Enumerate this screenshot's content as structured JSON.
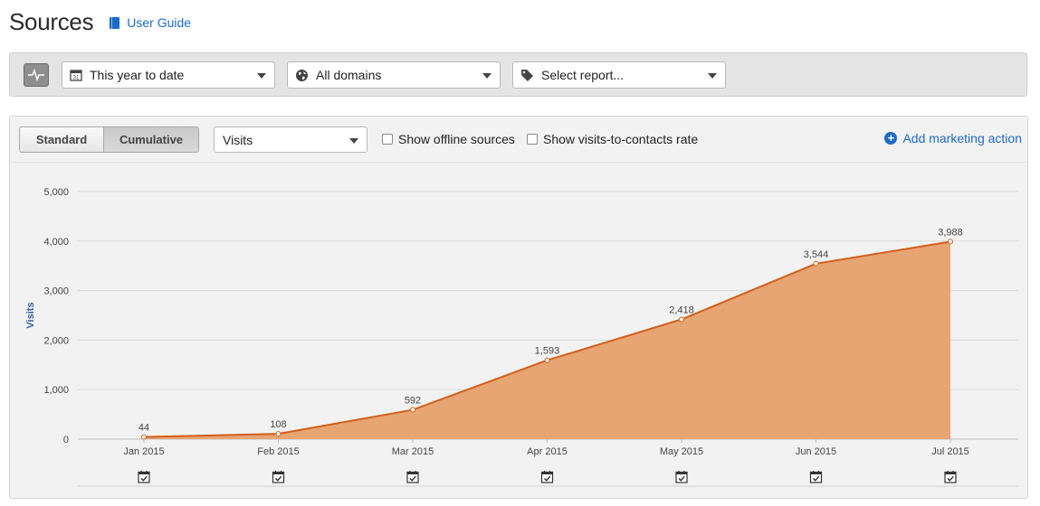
{
  "header": {
    "title": "Sources",
    "user_guide": "User Guide"
  },
  "filters": {
    "date_range": "This year to date",
    "domain": "All domains",
    "report": "Select report..."
  },
  "toolbar": {
    "modes": [
      "Standard",
      "Cumulative"
    ],
    "active_mode": "Cumulative",
    "metric": "Visits",
    "show_offline_label": "Show offline sources",
    "show_offline_checked": false,
    "show_rate_label": "Show visits-to-contacts rate",
    "show_rate_checked": false,
    "add_action_label": "Add marketing action"
  },
  "colors": {
    "accent": "#1b6ac9",
    "area_fill": "#e8a574",
    "line": "#d35e1a"
  },
  "chart_data": {
    "type": "area",
    "categories": [
      "Jan 2015",
      "Feb 2015",
      "Mar 2015",
      "Apr 2015",
      "May 2015",
      "Jun 2015",
      "Jul 2015"
    ],
    "series": [
      {
        "values": [
          44,
          108,
          592,
          1593,
          2418,
          3544,
          3988
        ]
      }
    ],
    "value_labels": [
      "44",
      "108",
      "592",
      "1,593",
      "2,418",
      "3,544",
      "3,988"
    ],
    "ylabel": "Visits",
    "ylim": [
      0,
      5000
    ],
    "yticks": [
      0,
      1000,
      2000,
      3000,
      4000,
      5000
    ],
    "ytick_labels": [
      "0",
      "1,000",
      "2,000",
      "3,000",
      "4,000",
      "5,000"
    ],
    "grid": true,
    "legend": "none",
    "marker_icon": "calendar-check-icon"
  }
}
